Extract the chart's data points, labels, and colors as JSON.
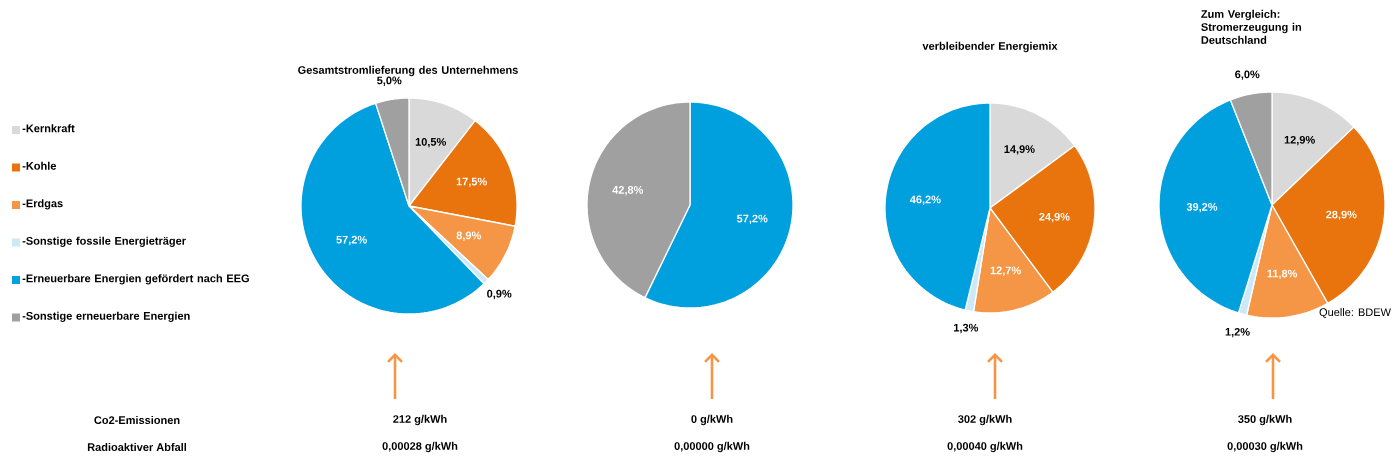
{
  "chart_data": [
    {
      "type": "pie",
      "title": "Gesamtstromlieferung des Unternehmens",
      "legend": "left",
      "categories": [
        "-Kernkraft",
        "-Kohle",
        "-Erdgas",
        "-Sonstige fossile Energieträger",
        "-Erneuerbare Energien gefördert nach EEG",
        "-Sonstige erneuerbare Energien"
      ],
      "values": [
        10.5,
        17.5,
        8.9,
        0.9,
        57.2,
        5.0
      ],
      "colors": [
        "#d9d9d9",
        "#e9730c",
        "#f59646",
        "#cce9f8",
        "#00a0de",
        "#a0a0a0"
      ],
      "value_labels": [
        "10,5%",
        "17,5%",
        "8,9%",
        "0,9%",
        "57,2%",
        "5,0%"
      ],
      "annotations": [
        "212 g/kWh",
        "0,00028 g/kWh",
        "Co2-Emissionen",
        "Radioaktiver Abfall"
      ]
    },
    {
      "type": "pie",
      "categories": [
        null,
        null
      ],
      "values": [
        57.2,
        42.8
      ],
      "colors": [
        "#00a0de",
        "#a0a0a0"
      ],
      "value_labels": [
        "57,2%",
        "42,8%"
      ],
      "annotations": [
        "0 g/kWh",
        "0,00000 g/kWh"
      ]
    },
    {
      "type": "pie",
      "title": "verbleibender Energiemix",
      "categories": [
        null,
        null,
        null,
        null,
        null
      ],
      "values": [
        14.9,
        24.9,
        12.7,
        1.3,
        46.2
      ],
      "colors": [
        "#d9d9d9",
        "#e9730c",
        "#f59646",
        "#cce9f8",
        "#00a0de"
      ],
      "value_labels": [
        "14,9%",
        "24,9%",
        "12,7%",
        "1,3%",
        "46,2%"
      ],
      "annotations": [
        "302 g/kWh",
        "0,00040 g/kWh"
      ]
    },
    {
      "type": "pie",
      "title": "Zum Vergleich: Stromerzeugung in Deutschland",
      "categories": [
        null,
        null,
        null,
        null,
        null,
        null
      ],
      "values": [
        12.9,
        28.9,
        11.8,
        1.2,
        39.2,
        6.0
      ],
      "colors": [
        "#d9d9d9",
        "#e9730c",
        "#f59646",
        "#cce9f8",
        "#00a0de",
        "#a0a0a0"
      ],
      "value_labels": [
        "12,9%",
        "28,9%",
        "11,8%",
        "1,2%",
        "39,2%",
        "6,0%"
      ],
      "annotations": [
        "350 g/kWh",
        "0,00030 g/kWh",
        "Quelle: BDEW"
      ]
    }
  ]
}
